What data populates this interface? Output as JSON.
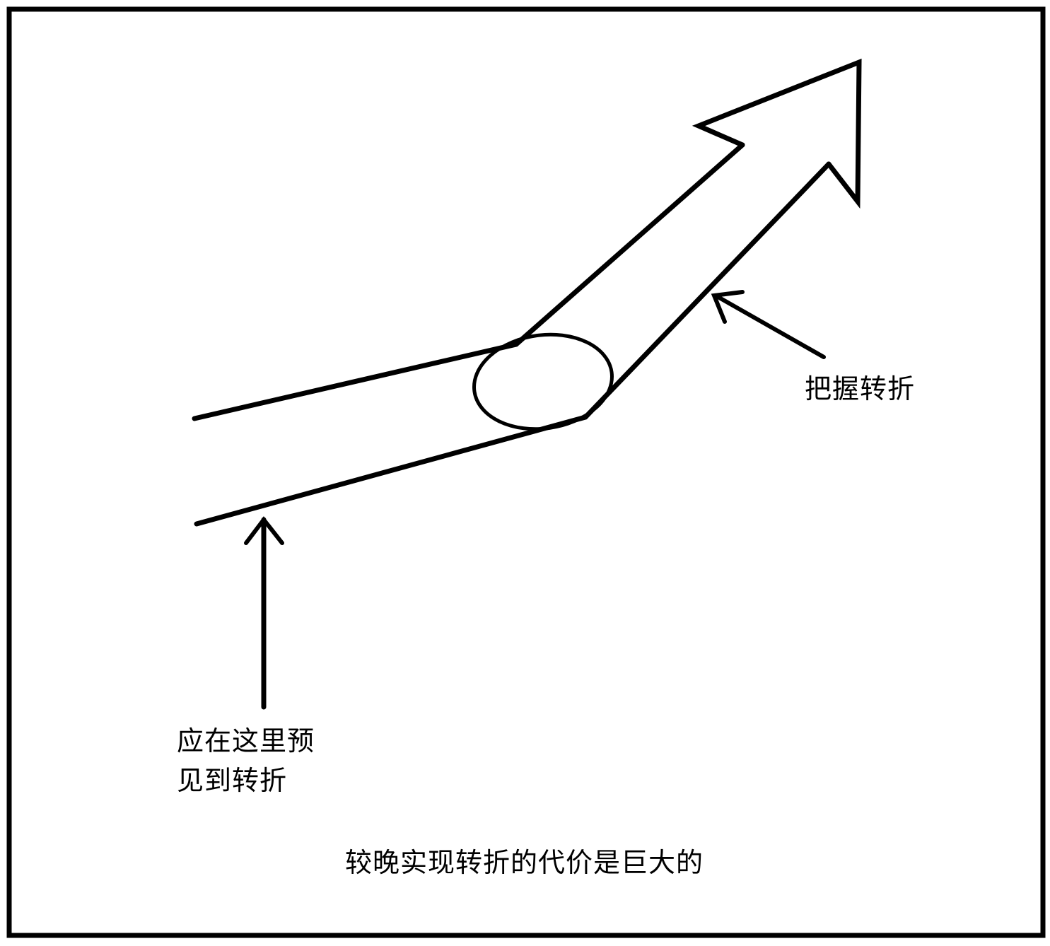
{
  "labels": {
    "grasp_turn": "把握转折",
    "foresee_turn_line1": "应在这里预",
    "foresee_turn_line2": "见到转折",
    "caption": "较晚实现转折的代价是巨大的"
  },
  "colors": {
    "ink": "#000000",
    "background": "#ffffff"
  }
}
